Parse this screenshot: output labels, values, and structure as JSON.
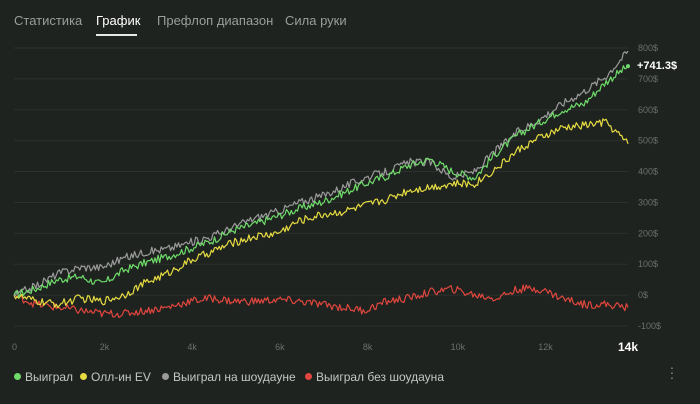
{
  "tabs": [
    {
      "label": "Статистика",
      "active": false
    },
    {
      "label": "График",
      "active": true
    },
    {
      "label": "Префлоп диапазон",
      "active": false
    },
    {
      "label": "Сила руки",
      "active": false
    }
  ],
  "legend": [
    {
      "label": "Выиграл",
      "color": "#6fdc6a"
    },
    {
      "label": "Олл-ин EV",
      "color": "#e6dc42"
    },
    {
      "label": "Выиграл на шоудауне",
      "color": "#9a9a9a"
    },
    {
      "label": "Выиграл без шоудауна",
      "color": "#e0463e"
    }
  ],
  "more_icon": "vertical-ellipsis-icon",
  "chart_data": {
    "type": "line",
    "final_label": "+741.3$",
    "x_max_label": "14k",
    "x_ticks": [
      {
        "value": 0,
        "label": "0"
      },
      {
        "value": 2000,
        "label": "2k"
      },
      {
        "value": 4000,
        "label": "4k"
      },
      {
        "value": 6000,
        "label": "6k"
      },
      {
        "value": 8000,
        "label": "8k"
      },
      {
        "value": 10000,
        "label": "10k"
      },
      {
        "value": 12000,
        "label": "12k"
      }
    ],
    "y_ticks": [
      {
        "value": 800,
        "label": "800$"
      },
      {
        "value": 700,
        "label": "700$"
      },
      {
        "value": 600,
        "label": "600$"
      },
      {
        "value": 500,
        "label": "500$"
      },
      {
        "value": 400,
        "label": "400$"
      },
      {
        "value": 300,
        "label": "300$"
      },
      {
        "value": 200,
        "label": "200$"
      },
      {
        "value": 100,
        "label": "100$"
      },
      {
        "value": 0,
        "label": "0$"
      },
      {
        "value": -100,
        "label": "-100$"
      }
    ],
    "xlim": [
      0,
      14000
    ],
    "ylim": [
      -100,
      800
    ],
    "grid": true,
    "series": [
      {
        "name": "Выиграл",
        "color": "#6fdc6a",
        "x": [
          0,
          500,
          1000,
          1500,
          2000,
          2500,
          3000,
          3500,
          4000,
          4500,
          5000,
          5500,
          6000,
          6500,
          7000,
          7500,
          8000,
          8500,
          9000,
          9500,
          10000,
          10500,
          11000,
          11500,
          12000,
          12500,
          13000,
          13500,
          14000
        ],
        "values": [
          0,
          20,
          50,
          60,
          35,
          80,
          105,
          125,
          150,
          175,
          210,
          230,
          255,
          280,
          300,
          330,
          360,
          385,
          420,
          440,
          400,
          380,
          460,
          520,
          560,
          600,
          620,
          690,
          741.3
        ]
      },
      {
        "name": "Олл-ин EV",
        "color": "#e6dc42",
        "x": [
          0,
          500,
          1000,
          1500,
          2000,
          2500,
          3000,
          3500,
          4000,
          4500,
          5000,
          5500,
          6000,
          6500,
          7000,
          7500,
          8000,
          8500,
          9000,
          9500,
          10000,
          10500,
          11000,
          11500,
          12000,
          12500,
          13000,
          13500,
          14000
        ],
        "values": [
          0,
          -20,
          -30,
          -10,
          -20,
          0,
          40,
          70,
          110,
          140,
          170,
          190,
          200,
          240,
          260,
          270,
          290,
          310,
          340,
          350,
          360,
          360,
          410,
          470,
          510,
          540,
          550,
          560,
          490
        ]
      },
      {
        "name": "Выиграл на шоудауне",
        "color": "#9a9a9a",
        "x": [
          0,
          500,
          1000,
          1500,
          2000,
          2500,
          3000,
          3500,
          4000,
          4500,
          5000,
          5500,
          6000,
          6500,
          7000,
          7500,
          8000,
          8500,
          9000,
          9500,
          10000,
          10500,
          11000,
          11500,
          12000,
          12500,
          13000,
          13500,
          14000
        ],
        "values": [
          0,
          30,
          70,
          90,
          90,
          120,
          140,
          150,
          170,
          190,
          220,
          250,
          270,
          300,
          320,
          350,
          380,
          400,
          430,
          430,
          380,
          400,
          470,
          530,
          570,
          620,
          660,
          710,
          790
        ]
      },
      {
        "name": "Выиграл без шоудауна",
        "color": "#e0463e",
        "x": [
          0,
          500,
          1000,
          1500,
          2000,
          2500,
          3000,
          3500,
          4000,
          4500,
          5000,
          5500,
          6000,
          6500,
          7000,
          7500,
          8000,
          8500,
          9000,
          9500,
          10000,
          10500,
          11000,
          11500,
          12000,
          12500,
          13000,
          13500,
          14000
        ],
        "values": [
          0,
          -30,
          -40,
          -50,
          -60,
          -60,
          -50,
          -40,
          -20,
          -10,
          -20,
          -20,
          -15,
          -20,
          -30,
          -40,
          -50,
          -20,
          -10,
          10,
          20,
          0,
          -10,
          20,
          20,
          -10,
          -30,
          -30,
          -40
        ]
      }
    ]
  }
}
